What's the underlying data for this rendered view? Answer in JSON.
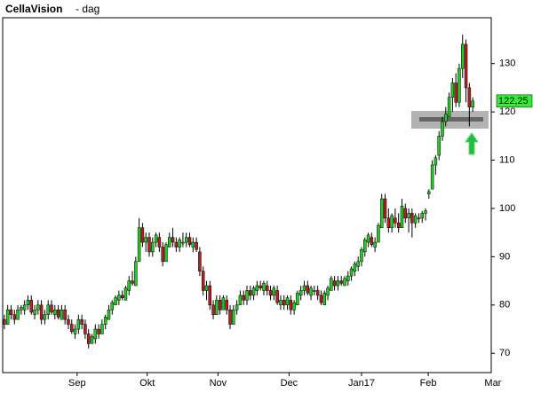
{
  "chart_data": {
    "type": "candlestick",
    "title": "CellaVision",
    "subtitle": "- dag",
    "up_color": "#22cc22",
    "down_color": "#b22222",
    "xlim": [
      -0.5,
      144.5
    ],
    "xticks": [
      {
        "value": 21.6,
        "label": "Sep"
      },
      {
        "value": 42.4,
        "label": "Okt"
      },
      {
        "value": 63.4,
        "label": "Nov"
      },
      {
        "value": 84.5,
        "label": "Dec"
      },
      {
        "value": 106,
        "label": "Jan17"
      },
      {
        "value": 125.8,
        "label": "Feb"
      },
      {
        "value": 145,
        "label": "Mar"
      }
    ],
    "ylim": [
      66,
      139.5
    ],
    "yticks": [
      70,
      80,
      90,
      100,
      110,
      120,
      130
    ],
    "last_price": {
      "value": 122.25,
      "label": "122,25"
    },
    "last_price_color": "#33ee33",
    "candles": [
      [
        77,
        78,
        75,
        76
      ],
      [
        76,
        80,
        76,
        79
      ],
      [
        79,
        80,
        77,
        78
      ],
      [
        78,
        79,
        76,
        77
      ],
      [
        77,
        80,
        77,
        79
      ],
      [
        79,
        80,
        78,
        79.5
      ],
      [
        79,
        81,
        78,
        80
      ],
      [
        80,
        82,
        79,
        81
      ],
      [
        81,
        82,
        78,
        78.5
      ],
      [
        78,
        80,
        77,
        79
      ],
      [
        79,
        81,
        78,
        80
      ],
      [
        80,
        81,
        76,
        77
      ],
      [
        77,
        79,
        76,
        78
      ],
      [
        78,
        81,
        77,
        80
      ],
      [
        80,
        81,
        78,
        78.5
      ],
      [
        78,
        80,
        77,
        79
      ],
      [
        79,
        80,
        77,
        77.5
      ],
      [
        77,
        80,
        77,
        79
      ],
      [
        79,
        80,
        76,
        77
      ],
      [
        77,
        78,
        75,
        76
      ],
      [
        76,
        77,
        74,
        74.5
      ],
      [
        74,
        76,
        73,
        75
      ],
      [
        75,
        78,
        74,
        77
      ],
      [
        77,
        78,
        75,
        76
      ],
      [
        76,
        77,
        73,
        74
      ],
      [
        74,
        75,
        71,
        72
      ],
      [
        72,
        74,
        72,
        73.5
      ],
      [
        73,
        76,
        72,
        75
      ],
      [
        75,
        76,
        73,
        74
      ],
      [
        74,
        77,
        74,
        76
      ],
      [
        76,
        78,
        75,
        77.5
      ],
      [
        77,
        80,
        77,
        79
      ],
      [
        79,
        81,
        78,
        80.5
      ],
      [
        80,
        82,
        80,
        81.5
      ],
      [
        81,
        83,
        80,
        82
      ],
      [
        82,
        83,
        81,
        81.5
      ],
      [
        81,
        84,
        81,
        83.5
      ],
      [
        83,
        86,
        82,
        85
      ],
      [
        85,
        87,
        84,
        84.5
      ],
      [
        84,
        90,
        84,
        89
      ],
      [
        89,
        98,
        89,
        96
      ],
      [
        96,
        97,
        92,
        93
      ],
      [
        93,
        95,
        91,
        94
      ],
      [
        94,
        95,
        90,
        91
      ],
      [
        91,
        94,
        90,
        93
      ],
      [
        93,
        95,
        92,
        94.5
      ],
      [
        94,
        95,
        91,
        92
      ],
      [
        92,
        93,
        88,
        89
      ],
      [
        89,
        93,
        89,
        92.5
      ],
      [
        92,
        95,
        92,
        94
      ],
      [
        94,
        96,
        92,
        93
      ],
      [
        93,
        94,
        91,
        92
      ],
      [
        92,
        94,
        91,
        93.5
      ],
      [
        93,
        95,
        92,
        93
      ],
      [
        93,
        95,
        92,
        94
      ],
      [
        94,
        95,
        92,
        92.5
      ],
      [
        92,
        94,
        91,
        93
      ],
      [
        93,
        94,
        91,
        91.5
      ],
      [
        91,
        92,
        86,
        87
      ],
      [
        87,
        88,
        82,
        83
      ],
      [
        83,
        85,
        81,
        84
      ],
      [
        84,
        85,
        79,
        80
      ],
      [
        80,
        81,
        77,
        78
      ],
      [
        78,
        82,
        78,
        81
      ],
      [
        81,
        82,
        78,
        79
      ],
      [
        79,
        82,
        79,
        81.5
      ],
      [
        81,
        82,
        78,
        79
      ],
      [
        79,
        80,
        75,
        76
      ],
      [
        76,
        80,
        76,
        79
      ],
      [
        79,
        81,
        78,
        80
      ],
      [
        80,
        83,
        80,
        82
      ],
      [
        82,
        83,
        80,
        81
      ],
      [
        81,
        84,
        80,
        83
      ],
      [
        83,
        84,
        81,
        82
      ],
      [
        82,
        84,
        81,
        83.5
      ],
      [
        83,
        85,
        82,
        84
      ],
      [
        84,
        85,
        83,
        83.5
      ],
      [
        83,
        85,
        82,
        84.5
      ],
      [
        84,
        85,
        82,
        83
      ],
      [
        83,
        84,
        81,
        82
      ],
      [
        82,
        84,
        81,
        83.5
      ],
      [
        83,
        84,
        80,
        80.5
      ],
      [
        80,
        82,
        79,
        81
      ],
      [
        81,
        82,
        79,
        80
      ],
      [
        80,
        82,
        79,
        81.5
      ],
      [
        81,
        82,
        78,
        79
      ],
      [
        79,
        81,
        78,
        80.5
      ],
      [
        80,
        83,
        80,
        82.5
      ],
      [
        82,
        84,
        81,
        83
      ],
      [
        83,
        85,
        82,
        84
      ],
      [
        84,
        85,
        82,
        82.5
      ],
      [
        82,
        84,
        81,
        83.5
      ],
      [
        83,
        84,
        82,
        83
      ],
      [
        83,
        84,
        81,
        82
      ],
      [
        82,
        83,
        80,
        80.5
      ],
      [
        80,
        83,
        80,
        82.5
      ],
      [
        82,
        84,
        81,
        83.5
      ],
      [
        83,
        86,
        83,
        85.5
      ],
      [
        85,
        86,
        83,
        84
      ],
      [
        84,
        86,
        83,
        85
      ],
      [
        85,
        86,
        84,
        84.5
      ],
      [
        84,
        86,
        84,
        85.5
      ],
      [
        85,
        87,
        84,
        86
      ],
      [
        86,
        88,
        85,
        87.5
      ],
      [
        87,
        89,
        86,
        88.5
      ],
      [
        88,
        90,
        87,
        89
      ],
      [
        89,
        92,
        88,
        91.5
      ],
      [
        91,
        94,
        90,
        93.5
      ],
      [
        93,
        95,
        92,
        94.5
      ],
      [
        94,
        95,
        92,
        92.5
      ],
      [
        92,
        94,
        91,
        93
      ],
      [
        93,
        97,
        93,
        96.5
      ],
      [
        96,
        103,
        96,
        102
      ],
      [
        102,
        103,
        97,
        98
      ],
      [
        98,
        100,
        95,
        96
      ],
      [
        96,
        99,
        95,
        98.5
      ],
      [
        98,
        100,
        96,
        97
      ],
      [
        97,
        99,
        95,
        96
      ],
      [
        96,
        102,
        96,
        100.5
      ],
      [
        100,
        101,
        97,
        98
      ],
      [
        98,
        100,
        95,
        99
      ],
      [
        99,
        100,
        94,
        97
      ],
      [
        97,
        99,
        96,
        98.5
      ],
      [
        98,
        99,
        97,
        98
      ],
      [
        98,
        99.5,
        97,
        99
      ],
      [
        99,
        100,
        97.5,
        99.5
      ],
      [
        103,
        104,
        102,
        103.5
      ],
      [
        104,
        110,
        104,
        109
      ],
      [
        109,
        111,
        107,
        110.5
      ],
      [
        111,
        116,
        110,
        115
      ],
      [
        115,
        119,
        114,
        118
      ],
      [
        118,
        121,
        117,
        119.5
      ],
      [
        119,
        124,
        119,
        123
      ],
      [
        123,
        127,
        120,
        126
      ],
      [
        126,
        128,
        121,
        122
      ],
      [
        122,
        130,
        121,
        129
      ],
      [
        129,
        136,
        127,
        134
      ],
      [
        134,
        135,
        122,
        125
      ],
      [
        125,
        126,
        117,
        121
      ],
      [
        121,
        123,
        120,
        122.25
      ]
    ]
  }
}
